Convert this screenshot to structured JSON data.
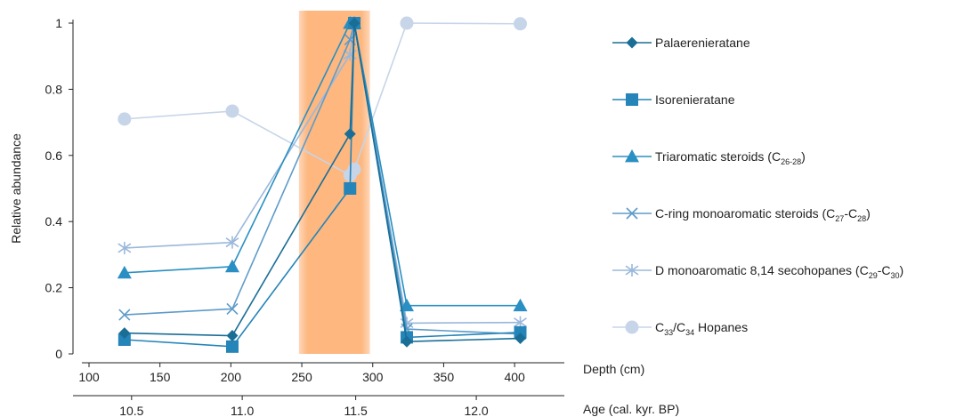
{
  "chart_data": {
    "type": "line",
    "ylabel": "Relative abundance",
    "xlabel": "Depth (cm)",
    "secondary_xlabel": "Age (cal. kyr. BP)",
    "xlim": [
      100,
      420
    ],
    "ylim": [
      0,
      1
    ],
    "x_ticks": [
      "100",
      "150",
      "200",
      "250",
      "300",
      "350",
      "400"
    ],
    "y_ticks": [
      "0",
      "0.2",
      "0.4",
      "0.6",
      "0.8",
      "1"
    ],
    "secondary_ticks": [
      {
        "label": "10.5",
        "depth": 130
      },
      {
        "label": "11.0",
        "depth": 208
      },
      {
        "label": "11.5",
        "depth": 288
      },
      {
        "label": "12.0",
        "depth": 373
      }
    ],
    "highlight_band": {
      "from": 248,
      "to": 298,
      "color": "#FDB77F"
    },
    "grid": false,
    "legend_position": "right",
    "series": [
      {
        "name": "Palaerenieratane",
        "marker": "diamond",
        "color": "#1A6E96",
        "points": [
          [
            125,
            0.063
          ],
          [
            201,
            0.055
          ],
          [
            284,
            0.665
          ],
          [
            287,
            1.0
          ],
          [
            324,
            0.037
          ],
          [
            404,
            0.047
          ]
        ]
      },
      {
        "name": "Isorenieratane",
        "marker": "square",
        "color": "#2584B8",
        "points": [
          [
            125,
            0.043
          ],
          [
            201,
            0.022
          ],
          [
            284,
            0.5
          ],
          [
            287,
            1.0
          ],
          [
            324,
            0.05
          ],
          [
            404,
            0.065
          ]
        ]
      },
      {
        "name": "Triaromatic steroids (C26-28)",
        "marker": "triangle",
        "color": "#2A8FC2",
        "points": [
          [
            125,
            0.245
          ],
          [
            201,
            0.264
          ],
          [
            284,
            1.0
          ],
          [
            287,
            1.0
          ],
          [
            324,
            0.146
          ],
          [
            404,
            0.146
          ]
        ]
      },
      {
        "name": "C-ring monoaromatic steroids (C27-C28)",
        "marker": "x",
        "color": "#5E9BC9",
        "points": [
          [
            125,
            0.118
          ],
          [
            201,
            0.136
          ],
          [
            284,
            0.95
          ],
          [
            287,
            1.0
          ],
          [
            324,
            0.075
          ],
          [
            404,
            0.06
          ]
        ]
      },
      {
        "name": "D monoaromatic 8,14 secohopanes (C29-C30)",
        "marker": "asterisk",
        "color": "#9AB8DA",
        "points": [
          [
            125,
            0.32
          ],
          [
            201,
            0.337
          ],
          [
            284,
            0.905
          ],
          [
            287,
            1.0
          ],
          [
            324,
            0.093
          ],
          [
            404,
            0.095
          ]
        ]
      },
      {
        "name": "C33/C34 Hopanes",
        "marker": "circle",
        "color": "#C6D5E8",
        "points": [
          [
            125,
            0.71
          ],
          [
            201,
            0.734
          ],
          [
            284,
            0.54
          ],
          [
            287,
            0.558
          ],
          [
            324,
            1.0
          ],
          [
            404,
            0.998
          ]
        ]
      }
    ],
    "legend_items": [
      {
        "text": "Palaerenieratane",
        "sub1": "",
        "mid": "",
        "sub2": "",
        "tail": ""
      },
      {
        "text": "Isorenieratane",
        "sub1": "",
        "mid": "",
        "sub2": "",
        "tail": ""
      },
      {
        "text": "Triaromatic steroids (C",
        "sub1": "26-28",
        "mid": ")",
        "sub2": "",
        "tail": ""
      },
      {
        "text": "C-ring monoaromatic steroids (C",
        "sub1": "27",
        "mid": "-C",
        "sub2": "28",
        "tail": ")"
      },
      {
        "text": "D monoaromatic 8,14 secohopanes (C",
        "sub1": "29",
        "mid": "-C",
        "sub2": "30",
        "tail": ")"
      },
      {
        "text": "C",
        "sub1": "33",
        "mid": "/C",
        "sub2": "34",
        "tail": " Hopanes"
      }
    ]
  }
}
